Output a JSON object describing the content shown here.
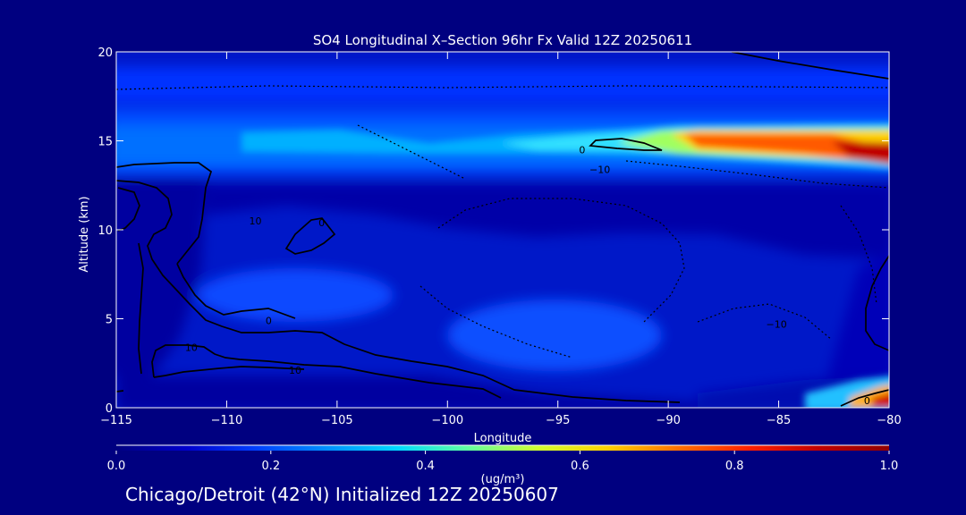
{
  "chart_data": {
    "type": "heatmap",
    "title": "SO4 Longitudinal X–Section 96hr  Fx Valid 12Z 20250611",
    "xlabel": "Longitude",
    "ylabel": "Altitude (km)",
    "xlim": [
      -115,
      -80
    ],
    "ylim": [
      0,
      20
    ],
    "x_ticks": [
      -115,
      -110,
      -105,
      -100,
      -95,
      -90,
      -85,
      -80
    ],
    "x_tick_labels": [
      "−115",
      "−110",
      "−105",
      "−100",
      "−95",
      "−90",
      "−85",
      "−80"
    ],
    "y_ticks": [
      0,
      5,
      10,
      15,
      20
    ],
    "y_tick_labels": [
      "0",
      "5",
      "10",
      "15",
      "20"
    ],
    "colorbar": {
      "min": 0.0,
      "max": 1.0,
      "ticks": [
        "0.0",
        "0.2",
        "0.4",
        "0.6",
        "0.8",
        "1.0"
      ],
      "units": "(ug/m³)",
      "colors": [
        "#000080",
        "#0000cc",
        "#0040ff",
        "#0090ff",
        "#00d8ff",
        "#60ffa0",
        "#d0ff30",
        "#ffd000",
        "#ff7000",
        "#ff2000",
        "#c00000",
        "#900000"
      ]
    },
    "contour_labels": [
      {
        "text": "0",
        "x": -93.9,
        "y": 14.5
      },
      {
        "text": "−10",
        "x": -93.1,
        "y": 13.4
      },
      {
        "text": "10",
        "x": -108.7,
        "y": 10.5
      },
      {
        "text": "0",
        "x": -105.7,
        "y": 10.4
      },
      {
        "text": "0",
        "x": -108.1,
        "y": 4.9
      },
      {
        "text": "10",
        "x": -111.6,
        "y": 3.4
      },
      {
        "text": "−10",
        "x": -85.1,
        "y": 4.7
      },
      {
        "text": "10",
        "x": -106.9,
        "y": 2.1
      },
      {
        "text": "0",
        "x": -81,
        "y": 0.4
      }
    ],
    "fields": [
      {
        "name": "upper plume",
        "lon": [
          -115,
          -80
        ],
        "alt": [
          13,
          16.8
        ],
        "max_value": 1.0,
        "max_location": {
          "lon": -80.5,
          "alt": 14.2
        }
      },
      {
        "name": "near-surface plume",
        "lon": [
          -84,
          -80
        ],
        "alt": [
          0,
          0.8
        ],
        "max_value": 1.0,
        "max_location": {
          "lon": -80.2,
          "alt": 0.4
        }
      },
      {
        "name": "background",
        "value_range": [
          0.0,
          0.35
        ]
      }
    ]
  },
  "footer": {
    "caption": "Chicago/Detroit (42°N) Initialized 12Z 20250607"
  }
}
